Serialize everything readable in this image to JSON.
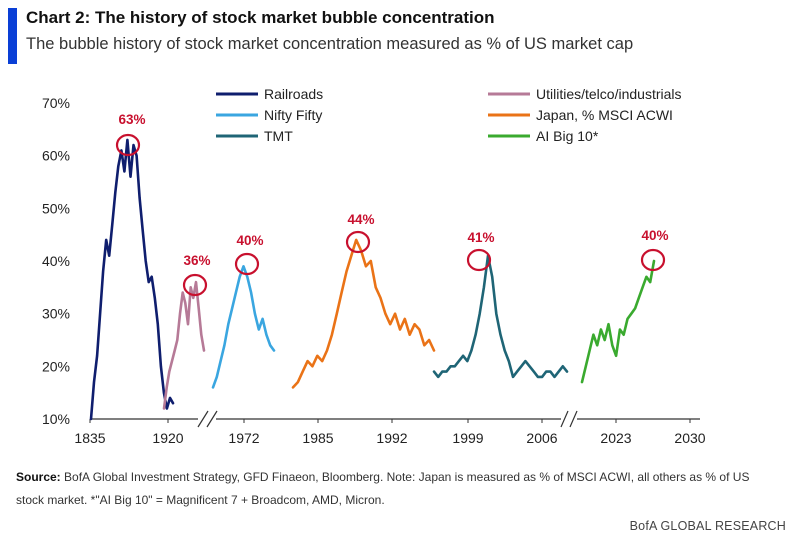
{
  "header": {
    "title": "Chart 2: The history of stock market bubble concentration",
    "subtitle": "The bubble history of stock market concentration measured as % of US market cap"
  },
  "footer": {
    "source_label": "Source:",
    "source_text": "BofA Global Investment Strategy, GFD Finaeon, Bloomberg. Note: Japan is measured as % of MSCI ACWI, all others as % of US stock market. *\"AI Big 10\" = Magnificent 7 + Broadcom, AMD, Micron.",
    "brand": "BofA GLOBAL RESEARCH"
  },
  "chart_data": {
    "type": "line",
    "title": "Chart 2: The history of stock market bubble concentration",
    "subtitle": "The bubble history of stock market concentration measured as % of US market cap",
    "xlabel": "",
    "ylabel": "",
    "ylim": [
      10,
      70
    ],
    "y_ticks": [
      "10%",
      "20%",
      "30%",
      "40%",
      "50%",
      "60%",
      "70%"
    ],
    "x_ticks": [
      "1835",
      "1920",
      "1972",
      "1985",
      "1992",
      "1999",
      "2006",
      "2023",
      "2030"
    ],
    "axis_breaks": true,
    "grid": false,
    "legend_placement": "top",
    "series": [
      {
        "name": "Railroads",
        "color": "#0f1e6e",
        "peak_label": "63%",
        "values": [
          10,
          17,
          22,
          30,
          38,
          44,
          41,
          47,
          53,
          58,
          61,
          57,
          63,
          56,
          62,
          60,
          52,
          46,
          40,
          36,
          37,
          33,
          28,
          20,
          15,
          12,
          14,
          13
        ]
      },
      {
        "name": "Utilities/telco/industrials",
        "color": "#b67a97",
        "peak_label": "36%",
        "values": [
          12,
          16,
          19,
          21,
          23,
          25,
          30,
          34,
          32,
          28,
          35,
          33,
          36,
          31,
          26,
          23
        ]
      },
      {
        "name": "Nifty Fifty",
        "color": "#3aa6e0",
        "peak_label": "40%",
        "values": [
          16,
          18,
          21,
          24,
          28,
          31,
          34,
          37,
          39,
          37,
          34,
          30,
          27,
          29,
          26,
          24,
          23
        ]
      },
      {
        "name": "Japan, % MSCI ACWI",
        "color": "#ea7317",
        "peak_label": "44%",
        "values": [
          16,
          17,
          19,
          21,
          20,
          22,
          21,
          23,
          26,
          30,
          34,
          38,
          41,
          44,
          42,
          39,
          40,
          35,
          33,
          30,
          28,
          30,
          27,
          29,
          26,
          28,
          27,
          24,
          25,
          23
        ]
      },
      {
        "name": "TMT",
        "color": "#1f6576",
        "peak_label": "41%",
        "values": [
          19,
          18,
          19,
          19,
          20,
          20,
          21,
          22,
          21,
          23,
          26,
          30,
          35,
          41,
          37,
          30,
          26,
          23,
          21,
          18,
          19,
          20,
          21,
          20,
          19,
          18,
          18,
          19,
          19,
          18,
          19,
          20,
          19
        ]
      },
      {
        "name": "AI Big 10*",
        "color": "#3aaa2f",
        "peak_label": "40%",
        "values": [
          17,
          20,
          23,
          26,
          24,
          27,
          25,
          28,
          24,
          22,
          27,
          26,
          29,
          30,
          31,
          33,
          35,
          37,
          36,
          40
        ]
      }
    ]
  }
}
